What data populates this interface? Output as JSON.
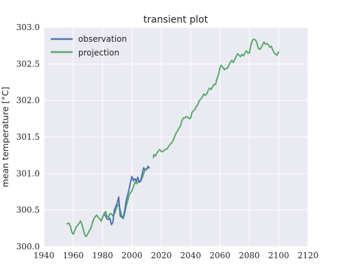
{
  "chart_data": {
    "type": "line",
    "title": "transient plot",
    "xlabel": "",
    "ylabel": "mean temperature [°C]",
    "xlim": [
      1940,
      2120
    ],
    "ylim": [
      300.0,
      303.0
    ],
    "xticks": [
      1940,
      1960,
      1980,
      2000,
      2020,
      2040,
      2060,
      2080,
      2100,
      2120
    ],
    "yticks": [
      300.0,
      300.5,
      301.0,
      301.5,
      302.0,
      302.5,
      303.0
    ],
    "xtick_labels": [
      "1940",
      "1960",
      "1980",
      "2000",
      "2020",
      "2040",
      "2060",
      "2080",
      "2100",
      "2120"
    ],
    "ytick_labels": [
      "300.0",
      "300.5",
      "301.0",
      "301.5",
      "302.0",
      "302.5",
      "303.0"
    ],
    "grid": true,
    "legend_position": "top-left",
    "colors": {
      "background": "#eaeaf2",
      "grid": "#ffffff",
      "observation": "#4c72b0",
      "projection": "#55a868"
    },
    "series": [
      {
        "name": "projection",
        "segments": [
          [
            [
              1955.5,
              300.31
            ],
            [
              1957,
              300.32
            ],
            [
              1958,
              300.28
            ],
            [
              1959,
              300.2
            ],
            [
              1960,
              300.17
            ],
            [
              1961,
              300.22
            ],
            [
              1962,
              300.27
            ],
            [
              1963,
              300.29
            ],
            [
              1964,
              300.32
            ],
            [
              1965,
              300.35
            ],
            [
              1966,
              300.3
            ],
            [
              1967,
              300.22
            ],
            [
              1968,
              300.15
            ],
            [
              1969,
              300.14
            ],
            [
              1970,
              300.18
            ],
            [
              1971,
              300.22
            ],
            [
              1972,
              300.25
            ],
            [
              1973,
              300.32
            ],
            [
              1974,
              300.38
            ],
            [
              1975,
              300.41
            ],
            [
              1976,
              300.43
            ],
            [
              1977,
              300.4
            ],
            [
              1978,
              300.38
            ],
            [
              1979,
              300.35
            ],
            [
              1980,
              300.4
            ],
            [
              1981,
              300.45
            ],
            [
              1982,
              300.48
            ],
            [
              1983,
              300.42
            ],
            [
              1984,
              300.4
            ],
            [
              1985,
              300.45
            ],
            [
              1986,
              300.45
            ],
            [
              1987,
              300.42
            ],
            [
              1988,
              300.45
            ],
            [
              1989,
              300.5
            ],
            [
              1990,
              300.56
            ],
            [
              1991,
              300.58
            ],
            [
              1992,
              300.5
            ],
            [
              1993,
              300.42
            ],
            [
              1994,
              300.38
            ],
            [
              1995,
              300.45
            ],
            [
              1996,
              300.55
            ],
            [
              1997,
              300.62
            ],
            [
              1998,
              300.7
            ],
            [
              1999,
              300.74
            ],
            [
              2000,
              300.76
            ],
            [
              2001,
              300.82
            ],
            [
              2002,
              300.88
            ],
            [
              2003,
              300.86
            ],
            [
              2004,
              300.88
            ],
            [
              2005,
              300.9
            ],
            [
              2006,
              300.9
            ],
            [
              2007,
              300.94
            ],
            [
              2008,
              301.0
            ],
            [
              2009,
              301.05
            ],
            [
              2010,
              301.06
            ],
            [
              2011,
              301.08
            ]
          ],
          [
            [
              2014.5,
              301.21
            ],
            [
              2015,
              301.26
            ],
            [
              2016,
              301.24
            ],
            [
              2017,
              301.28
            ],
            [
              2018,
              301.31
            ],
            [
              2019,
              301.33
            ],
            [
              2020,
              301.3
            ],
            [
              2021,
              301.3
            ],
            [
              2022,
              301.32
            ],
            [
              2023,
              301.33
            ],
            [
              2024,
              301.34
            ],
            [
              2025,
              301.37
            ],
            [
              2026,
              301.4
            ],
            [
              2027,
              301.42
            ],
            [
              2028,
              301.45
            ],
            [
              2029,
              301.5
            ],
            [
              2030,
              301.55
            ],
            [
              2031,
              301.58
            ],
            [
              2032,
              301.62
            ],
            [
              2033,
              301.65
            ],
            [
              2034,
              301.72
            ],
            [
              2035,
              301.76
            ],
            [
              2036,
              301.76
            ],
            [
              2037,
              301.78
            ],
            [
              2038,
              301.77
            ],
            [
              2039,
              301.75
            ],
            [
              2040,
              301.76
            ],
            [
              2041,
              301.84
            ],
            [
              2042,
              301.86
            ],
            [
              2043,
              301.88
            ],
            [
              2044,
              301.92
            ],
            [
              2045,
              301.95
            ],
            [
              2046,
              302.0
            ],
            [
              2047,
              302.02
            ],
            [
              2048,
              302.05
            ],
            [
              2049,
              302.09
            ],
            [
              2050,
              302.07
            ],
            [
              2051,
              302.09
            ],
            [
              2052,
              302.14
            ],
            [
              2053,
              302.17
            ],
            [
              2054,
              302.15
            ],
            [
              2055,
              302.19
            ],
            [
              2056,
              302.22
            ],
            [
              2057,
              302.22
            ],
            [
              2058,
              302.3
            ],
            [
              2059,
              302.35
            ],
            [
              2060,
              302.45
            ],
            [
              2061,
              302.48
            ],
            [
              2062,
              302.45
            ],
            [
              2063,
              302.42
            ],
            [
              2064,
              302.44
            ],
            [
              2065,
              302.44
            ],
            [
              2066,
              302.48
            ],
            [
              2067,
              302.52
            ],
            [
              2068,
              302.55
            ],
            [
              2069,
              302.52
            ],
            [
              2070,
              302.56
            ],
            [
              2071,
              302.6
            ],
            [
              2072,
              302.64
            ],
            [
              2073,
              302.62
            ],
            [
              2074,
              302.6
            ],
            [
              2075,
              302.63
            ],
            [
              2076,
              302.61
            ],
            [
              2077,
              302.65
            ],
            [
              2078,
              302.68
            ],
            [
              2079,
              302.65
            ],
            [
              2080,
              302.65
            ],
            [
              2081,
              302.75
            ],
            [
              2082,
              302.82
            ],
            [
              2083,
              302.84
            ],
            [
              2084,
              302.83
            ],
            [
              2085,
              302.8
            ],
            [
              2086,
              302.72
            ],
            [
              2087,
              302.7
            ],
            [
              2088,
              302.72
            ],
            [
              2089,
              302.76
            ],
            [
              2090,
              302.8
            ],
            [
              2091,
              302.77
            ],
            [
              2092,
              302.78
            ],
            [
              2093,
              302.76
            ],
            [
              2094,
              302.73
            ],
            [
              2095,
              302.74
            ],
            [
              2096,
              302.69
            ],
            [
              2097,
              302.65
            ],
            [
              2098,
              302.63
            ],
            [
              2099,
              302.62
            ],
            [
              2100,
              302.67
            ]
          ]
        ]
      },
      {
        "name": "observation",
        "segments": [
          [
            [
              1981,
              300.45
            ],
            [
              1982,
              300.42
            ],
            [
              1983,
              300.38
            ],
            [
              1984,
              300.37
            ],
            [
              1985,
              300.39
            ],
            [
              1986,
              300.3
            ],
            [
              1987,
              300.33
            ],
            [
              1988,
              300.5
            ],
            [
              1989,
              300.55
            ],
            [
              1990,
              300.6
            ],
            [
              1991,
              300.68
            ],
            [
              1992,
              300.42
            ],
            [
              1993,
              300.4
            ],
            [
              1994,
              300.4
            ],
            [
              1995,
              300.48
            ],
            [
              1996,
              300.62
            ],
            [
              1997,
              300.7
            ],
            [
              1998,
              300.78
            ],
            [
              1999,
              300.88
            ],
            [
              2000,
              300.96
            ],
            [
              2001,
              300.9
            ],
            [
              2002,
              300.93
            ],
            [
              2003,
              300.89
            ],
            [
              2004,
              300.95
            ],
            [
              2005,
              300.88
            ],
            [
              2006,
              300.9
            ],
            [
              2007,
              301.0
            ],
            [
              2008,
              301.08
            ],
            [
              2009,
              301.05
            ],
            [
              2010,
              301.06
            ],
            [
              2011,
              301.1
            ],
            [
              2012,
              301.07
            ]
          ]
        ]
      }
    ]
  }
}
